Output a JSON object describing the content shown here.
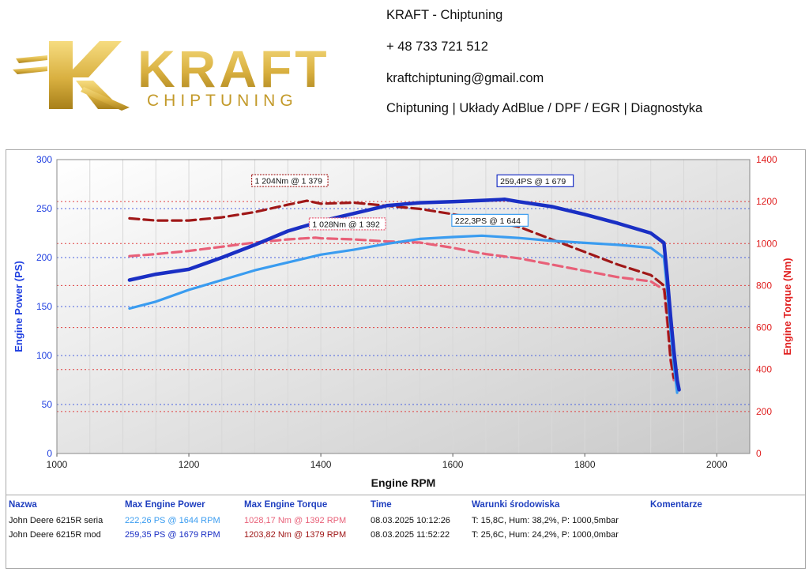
{
  "brand": {
    "logo_text": "KRAFT",
    "logo_subtext": "CHIPTUNING",
    "colors": {
      "gold_light": "#f2d36b",
      "gold_dark": "#b88a1b"
    }
  },
  "contact": {
    "name": "KRAFT - Chiptuning",
    "phone": "+ 48 733 721 512",
    "email": "kraftchiptuning@gmail.com",
    "services": "Chiptuning | Układy AdBlue / DPF / EGR | Diagnostyka"
  },
  "chart_data": {
    "type": "line",
    "xlabel": "Engine RPM",
    "ylabel": "Engine Power (PS)",
    "y2label": "Engine Torque (Nm)",
    "xlim": [
      1000,
      2050
    ],
    "ylim": [
      0,
      300
    ],
    "y2lim": [
      0,
      1400
    ],
    "x_ticks": [
      1000,
      1200,
      1400,
      1600,
      1800,
      2000
    ],
    "y_ticks": [
      0,
      50,
      100,
      150,
      200,
      250,
      300
    ],
    "y2_ticks": [
      0,
      200,
      400,
      600,
      800,
      1000,
      1200,
      1400
    ],
    "grid": true,
    "colors": {
      "power_mod": "#1a2fc4",
      "power_stock": "#3a9cf0",
      "torque_mod": "#a01818",
      "torque_stock": "#e86078",
      "left_axis": "#1f3fe0",
      "right_axis": "#e02020"
    },
    "series": [
      {
        "key": "power_mod",
        "axis": "left",
        "dashed": false,
        "x": [
          1110,
          1150,
          1200,
          1250,
          1300,
          1350,
          1400,
          1450,
          1500,
          1550,
          1600,
          1650,
          1679,
          1700,
          1750,
          1800,
          1850,
          1900,
          1920,
          1925,
          1930,
          1935,
          1940,
          1943
        ],
        "y": [
          177,
          183,
          188,
          200,
          213,
          227,
          237,
          245,
          253,
          256,
          257,
          258.5,
          259.4,
          257,
          252,
          244,
          235,
          225,
          215,
          180,
          140,
          105,
          75,
          65
        ]
      },
      {
        "key": "power_stock",
        "axis": "left",
        "dashed": false,
        "x": [
          1110,
          1150,
          1200,
          1250,
          1300,
          1350,
          1400,
          1450,
          1500,
          1550,
          1600,
          1644,
          1700,
          1750,
          1800,
          1850,
          1900,
          1920,
          1925,
          1930,
          1935,
          1940
        ],
        "y": [
          148,
          155,
          167,
          177,
          187,
          195,
          203,
          208,
          214,
          219,
          221,
          222.3,
          220,
          217,
          215,
          213,
          210,
          200,
          165,
          125,
          90,
          62
        ]
      },
      {
        "key": "torque_mod",
        "axis": "right",
        "dashed": true,
        "x": [
          1110,
          1150,
          1200,
          1250,
          1300,
          1350,
          1379,
          1400,
          1450,
          1500,
          1550,
          1600,
          1650,
          1700,
          1750,
          1800,
          1850,
          1900,
          1920,
          1925,
          1930,
          1935
        ],
        "y": [
          1120,
          1110,
          1110,
          1125,
          1150,
          1185,
          1204,
          1190,
          1195,
          1180,
          1165,
          1140,
          1110,
          1080,
          1020,
          960,
          900,
          850,
          800,
          650,
          450,
          360
        ]
      },
      {
        "key": "torque_stock",
        "axis": "right",
        "dashed": true,
        "x": [
          1110,
          1150,
          1200,
          1250,
          1300,
          1350,
          1392,
          1400,
          1450,
          1500,
          1550,
          1600,
          1650,
          1700,
          1750,
          1800,
          1850,
          1900,
          1920,
          1925,
          1930,
          1935
        ],
        "y": [
          940,
          950,
          965,
          985,
          1005,
          1020,
          1028,
          1025,
          1020,
          1010,
          1005,
          980,
          950,
          930,
          900,
          870,
          840,
          820,
          780,
          620,
          440,
          350
        ]
      }
    ],
    "annotations": [
      {
        "text": "259,4PS @ 1 679",
        "x": 1679,
        "y": 259.4,
        "axis": "left",
        "color": "#1a2fc4"
      },
      {
        "text": "222,3PS @ 1 644",
        "x": 1644,
        "y": 222.3,
        "axis": "left",
        "color": "#3a9cf0"
      },
      {
        "text": "1 204Nm @ 1 379",
        "x": 1379,
        "y": 1204,
        "axis": "right",
        "color": "#a01818"
      },
      {
        "text": "1 028Nm @ 1 392",
        "x": 1392,
        "y": 1028,
        "axis": "right",
        "color": "#e86078"
      }
    ]
  },
  "table": {
    "headers": {
      "name": "Nazwa",
      "power": "Max Engine Power",
      "torque": "Max Engine Torque",
      "time": "Time",
      "conditions": "Warunki środowiska",
      "comments": "Komentarze"
    },
    "rows": [
      {
        "name": "John Deere 6215R seria",
        "power": "222,26 PS @ 1644 RPM",
        "torque": "1028,17 Nm @ 1392 RPM",
        "time": "08.03.2025 10:12:26",
        "conditions": "T: 15,8C, Hum: 38,2%, P: 1000,5mbar",
        "power_color": "#3a9cf0",
        "torque_color": "#e86078"
      },
      {
        "name": "John Deere 6215R mod",
        "power": "259,35 PS @ 1679 RPM",
        "torque": "1203,82 Nm @ 1379 RPM",
        "time": "08.03.2025 11:52:22",
        "conditions": "T: 25,6C, Hum: 24,2%, P: 1000,0mbar",
        "power_color": "#1a2fc4",
        "torque_color": "#a01818"
      }
    ]
  }
}
